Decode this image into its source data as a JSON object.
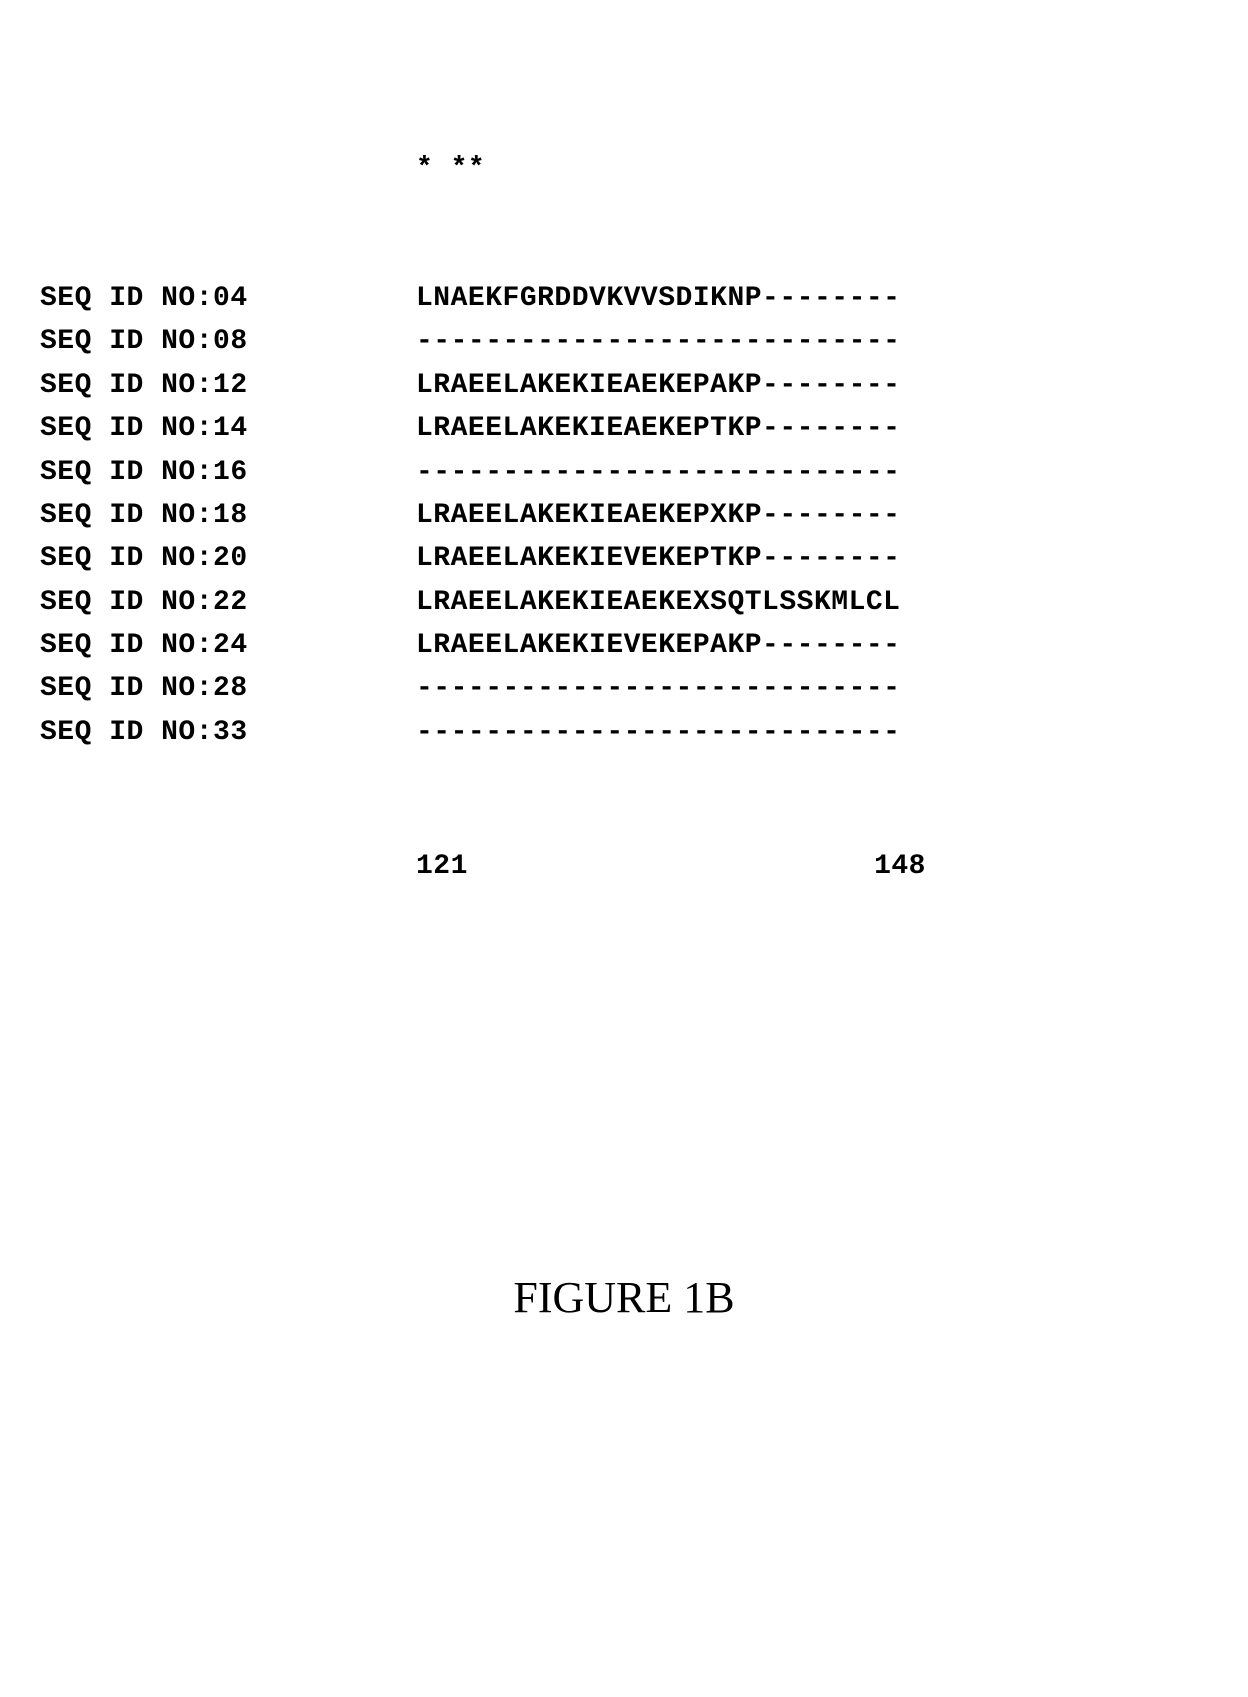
{
  "markers": "* **",
  "rows": [
    {
      "label": "SEQ ID NO:04",
      "sequence": "LNAEKFGRDDVKVVSDIKNP--------"
    },
    {
      "label": "SEQ ID NO:08",
      "sequence": "----------------------------"
    },
    {
      "label": "SEQ ID NO:12",
      "sequence": "LRAEELAKEKIEAEKEPAKP--------"
    },
    {
      "label": "SEQ ID NO:14",
      "sequence": "LRAEELAKEKIEAEKEPTKP--------"
    },
    {
      "label": "SEQ ID NO:16",
      "sequence": "----------------------------"
    },
    {
      "label": "SEQ ID NO:18",
      "sequence": "LRAEELAKEKIEAEKEPXKP--------"
    },
    {
      "label": "SEQ ID NO:20",
      "sequence": "LRAEELAKEKIEVEKEPTKP--------"
    },
    {
      "label": "SEQ ID NO:22",
      "sequence": "LRAEELAKEKIEAEKEXSQTLSSKMLCL"
    },
    {
      "label": "SEQ ID NO:24",
      "sequence": "LRAEELAKEKIEVEKEPAKP--------"
    },
    {
      "label": "SEQ ID NO:28",
      "sequence": "----------------------------"
    },
    {
      "label": "SEQ ID NO:33",
      "sequence": "----------------------------"
    }
  ],
  "ruler_start": "121",
  "ruler_end": "148",
  "figure_label": "FIGURE 1B",
  "style": {
    "font_family_mono": "Courier New",
    "font_family_serif": "Times New Roman",
    "font_size_alignment": 28,
    "font_size_figure": 44,
    "text_color": "#000000",
    "background_color": "#ffffff"
  }
}
